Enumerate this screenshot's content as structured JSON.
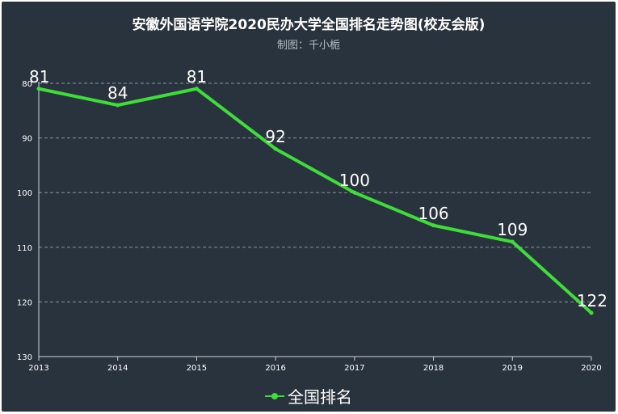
{
  "chart_data": {
    "type": "line",
    "title": "安徽外国语学院2020民办大学全国排名走势图(校友会版)",
    "subtitle": "制图：千小栀",
    "x": [
      "2013",
      "2014",
      "2015",
      "2016",
      "2017",
      "2018",
      "2019",
      "2020"
    ],
    "series": [
      {
        "name": "全国排名",
        "values": [
          81,
          84,
          81,
          92,
          100,
          106,
          109,
          122
        ],
        "color": "#3fdd3a"
      }
    ],
    "ylim": [
      80,
      130
    ],
    "y_inverted": true,
    "yticks": [
      "80",
      "90",
      "100",
      "110",
      "120",
      "130"
    ],
    "grid": true,
    "legend": "bottom-center"
  }
}
